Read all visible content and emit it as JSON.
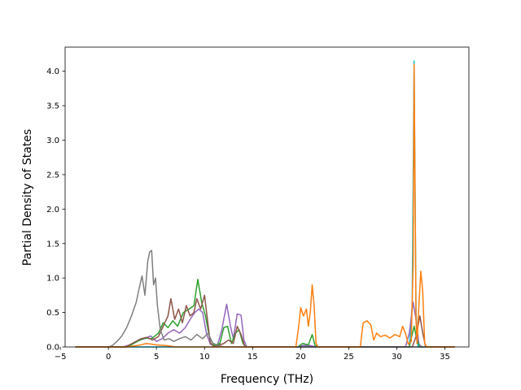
{
  "chart_data": {
    "type": "line",
    "title": "",
    "xlabel": "Frequency (THz)",
    "ylabel": "Partial Density of States",
    "xlim": [
      -4.5,
      37.5
    ],
    "ylim": [
      0.0,
      4.35
    ],
    "xticks": [
      -5,
      0,
      5,
      10,
      15,
      20,
      25,
      30,
      35
    ],
    "xtick_labels": [
      "−5",
      "0",
      "5",
      "10",
      "15",
      "20",
      "25",
      "30",
      "35"
    ],
    "yticks": [
      0.0,
      0.5,
      1.0,
      1.5,
      2.0,
      2.5,
      3.0,
      3.5,
      4.0
    ],
    "ytick_labels": [
      "0.0",
      "0.5",
      "1.0",
      "1.5",
      "2.0",
      "2.5",
      "3.0",
      "3.5",
      "4.0"
    ],
    "grid": false,
    "legend": "none",
    "series": [
      {
        "color": "#17becf",
        "points": [
          [
            -3.4,
            0
          ],
          [
            31.3,
            0
          ],
          [
            31.6,
            0.6
          ],
          [
            31.8,
            4.15
          ],
          [
            32.0,
            0.5
          ],
          [
            32.2,
            0
          ],
          [
            36.0,
            0
          ]
        ]
      },
      {
        "color": "#9467bd",
        "points": [
          [
            -3.4,
            0
          ],
          [
            1.5,
            0
          ],
          [
            2.5,
            0.04
          ],
          [
            3.2,
            0.1
          ],
          [
            3.8,
            0.12
          ],
          [
            4.4,
            0.16
          ],
          [
            5.0,
            0.08
          ],
          [
            5.6,
            0.12
          ],
          [
            6.2,
            0.2
          ],
          [
            6.8,
            0.25
          ],
          [
            7.4,
            0.2
          ],
          [
            8.0,
            0.28
          ],
          [
            8.6,
            0.42
          ],
          [
            9.0,
            0.5
          ],
          [
            9.4,
            0.55
          ],
          [
            9.8,
            0.5
          ],
          [
            10.2,
            0.2
          ],
          [
            10.6,
            0.04
          ],
          [
            11.3,
            0
          ],
          [
            11.8,
            0.25
          ],
          [
            12.3,
            0.62
          ],
          [
            12.7,
            0.3
          ],
          [
            13.0,
            0.12
          ],
          [
            13.4,
            0.48
          ],
          [
            13.8,
            0.46
          ],
          [
            14.1,
            0.1
          ],
          [
            14.4,
            0
          ],
          [
            19.8,
            0
          ],
          [
            20.2,
            0.02
          ],
          [
            21.0,
            0.02
          ],
          [
            21.6,
            0
          ],
          [
            30.9,
            0
          ],
          [
            31.3,
            0.2
          ],
          [
            31.7,
            0.65
          ],
          [
            32.0,
            0.4
          ],
          [
            32.3,
            0.04
          ],
          [
            32.6,
            0
          ],
          [
            36.0,
            0
          ]
        ]
      },
      {
        "color": "#2ca02c",
        "points": [
          [
            -3.4,
            0
          ],
          [
            2.0,
            0
          ],
          [
            3.0,
            0.08
          ],
          [
            3.8,
            0.13
          ],
          [
            4.5,
            0.12
          ],
          [
            5.2,
            0.2
          ],
          [
            5.7,
            0.35
          ],
          [
            6.2,
            0.28
          ],
          [
            6.7,
            0.38
          ],
          [
            7.2,
            0.3
          ],
          [
            7.8,
            0.5
          ],
          [
            8.4,
            0.55
          ],
          [
            8.9,
            0.6
          ],
          [
            9.3,
            0.98
          ],
          [
            9.7,
            0.65
          ],
          [
            10.1,
            0.45
          ],
          [
            10.5,
            0.15
          ],
          [
            11.0,
            0.02
          ],
          [
            11.6,
            0.05
          ],
          [
            12.0,
            0.28
          ],
          [
            12.4,
            0.3
          ],
          [
            12.8,
            0.05
          ],
          [
            13.2,
            0.2
          ],
          [
            13.6,
            0.25
          ],
          [
            14.0,
            0.05
          ],
          [
            14.3,
            0
          ],
          [
            19.7,
            0
          ],
          [
            20.2,
            0.05
          ],
          [
            20.8,
            0.03
          ],
          [
            21.2,
            0.18
          ],
          [
            21.5,
            0.02
          ],
          [
            21.8,
            0
          ],
          [
            31.3,
            0
          ],
          [
            31.8,
            0.3
          ],
          [
            32.1,
            0.1
          ],
          [
            32.4,
            0
          ],
          [
            36.0,
            0
          ]
        ]
      },
      {
        "color": "#8c564b",
        "points": [
          [
            -3.4,
            0
          ],
          [
            1.8,
            0
          ],
          [
            2.6,
            0.06
          ],
          [
            3.4,
            0.12
          ],
          [
            4.0,
            0.14
          ],
          [
            4.6,
            0.1
          ],
          [
            5.2,
            0.15
          ],
          [
            5.7,
            0.3
          ],
          [
            6.2,
            0.45
          ],
          [
            6.5,
            0.7
          ],
          [
            6.9,
            0.4
          ],
          [
            7.3,
            0.55
          ],
          [
            7.7,
            0.35
          ],
          [
            8.1,
            0.6
          ],
          [
            8.5,
            0.45
          ],
          [
            8.9,
            0.5
          ],
          [
            9.2,
            0.7
          ],
          [
            9.6,
            0.55
          ],
          [
            10.0,
            0.75
          ],
          [
            10.3,
            0.4
          ],
          [
            10.6,
            0.06
          ],
          [
            11.0,
            0
          ],
          [
            12.0,
            0.05
          ],
          [
            12.5,
            0.1
          ],
          [
            13.0,
            0.05
          ],
          [
            13.4,
            0.3
          ],
          [
            13.8,
            0.18
          ],
          [
            14.2,
            0
          ],
          [
            31.6,
            0
          ],
          [
            32.0,
            0.15
          ],
          [
            32.4,
            0.45
          ],
          [
            32.7,
            0.2
          ],
          [
            33.0,
            0
          ],
          [
            36.0,
            0
          ]
        ]
      },
      {
        "color": "#7f7f7f",
        "points": [
          [
            -3.4,
            0
          ],
          [
            0.0,
            0
          ],
          [
            0.4,
            0.02
          ],
          [
            0.9,
            0.08
          ],
          [
            1.4,
            0.16
          ],
          [
            1.9,
            0.28
          ],
          [
            2.4,
            0.45
          ],
          [
            2.9,
            0.65
          ],
          [
            3.2,
            0.85
          ],
          [
            3.5,
            1.03
          ],
          [
            3.8,
            0.75
          ],
          [
            4.1,
            1.25
          ],
          [
            4.3,
            1.38
          ],
          [
            4.5,
            1.4
          ],
          [
            4.7,
            0.9
          ],
          [
            4.9,
            1.0
          ],
          [
            5.1,
            0.6
          ],
          [
            5.4,
            0.25
          ],
          [
            5.8,
            0.1
          ],
          [
            6.3,
            0.12
          ],
          [
            6.8,
            0.08
          ],
          [
            7.4,
            0.12
          ],
          [
            8.0,
            0.15
          ],
          [
            8.6,
            0.1
          ],
          [
            9.2,
            0.18
          ],
          [
            9.8,
            0.12
          ],
          [
            10.4,
            0.2
          ],
          [
            10.8,
            0.06
          ],
          [
            11.4,
            0.02
          ],
          [
            12.0,
            0
          ],
          [
            36.0,
            0
          ]
        ]
      },
      {
        "color": "#ff7f0e",
        "points": [
          [
            -3.4,
            0
          ],
          [
            2.0,
            0
          ],
          [
            3.0,
            0.02
          ],
          [
            4.0,
            0.05
          ],
          [
            5.0,
            0.03
          ],
          [
            6.0,
            0.02
          ],
          [
            7.0,
            0
          ],
          [
            19.5,
            0
          ],
          [
            19.8,
            0.3
          ],
          [
            20.0,
            0.57
          ],
          [
            20.3,
            0.45
          ],
          [
            20.6,
            0.55
          ],
          [
            20.8,
            0.3
          ],
          [
            21.0,
            0.5
          ],
          [
            21.2,
            0.9
          ],
          [
            21.4,
            0.6
          ],
          [
            21.6,
            0.05
          ],
          [
            21.8,
            0
          ],
          [
            26.2,
            0
          ],
          [
            26.5,
            0.35
          ],
          [
            26.9,
            0.38
          ],
          [
            27.3,
            0.32
          ],
          [
            27.6,
            0.1
          ],
          [
            27.9,
            0.2
          ],
          [
            28.3,
            0.15
          ],
          [
            28.8,
            0.17
          ],
          [
            29.3,
            0.13
          ],
          [
            29.8,
            0.18
          ],
          [
            30.3,
            0.15
          ],
          [
            30.6,
            0.3
          ],
          [
            30.9,
            0.2
          ],
          [
            31.2,
            0.04
          ],
          [
            31.5,
            0.08
          ],
          [
            31.7,
            1.2
          ],
          [
            31.8,
            4.1
          ],
          [
            32.0,
            0.4
          ],
          [
            32.1,
            0.05
          ],
          [
            32.3,
            0.6
          ],
          [
            32.5,
            1.1
          ],
          [
            32.7,
            0.8
          ],
          [
            32.9,
            0.05
          ],
          [
            33.1,
            0
          ],
          [
            36.0,
            0
          ]
        ]
      }
    ]
  }
}
